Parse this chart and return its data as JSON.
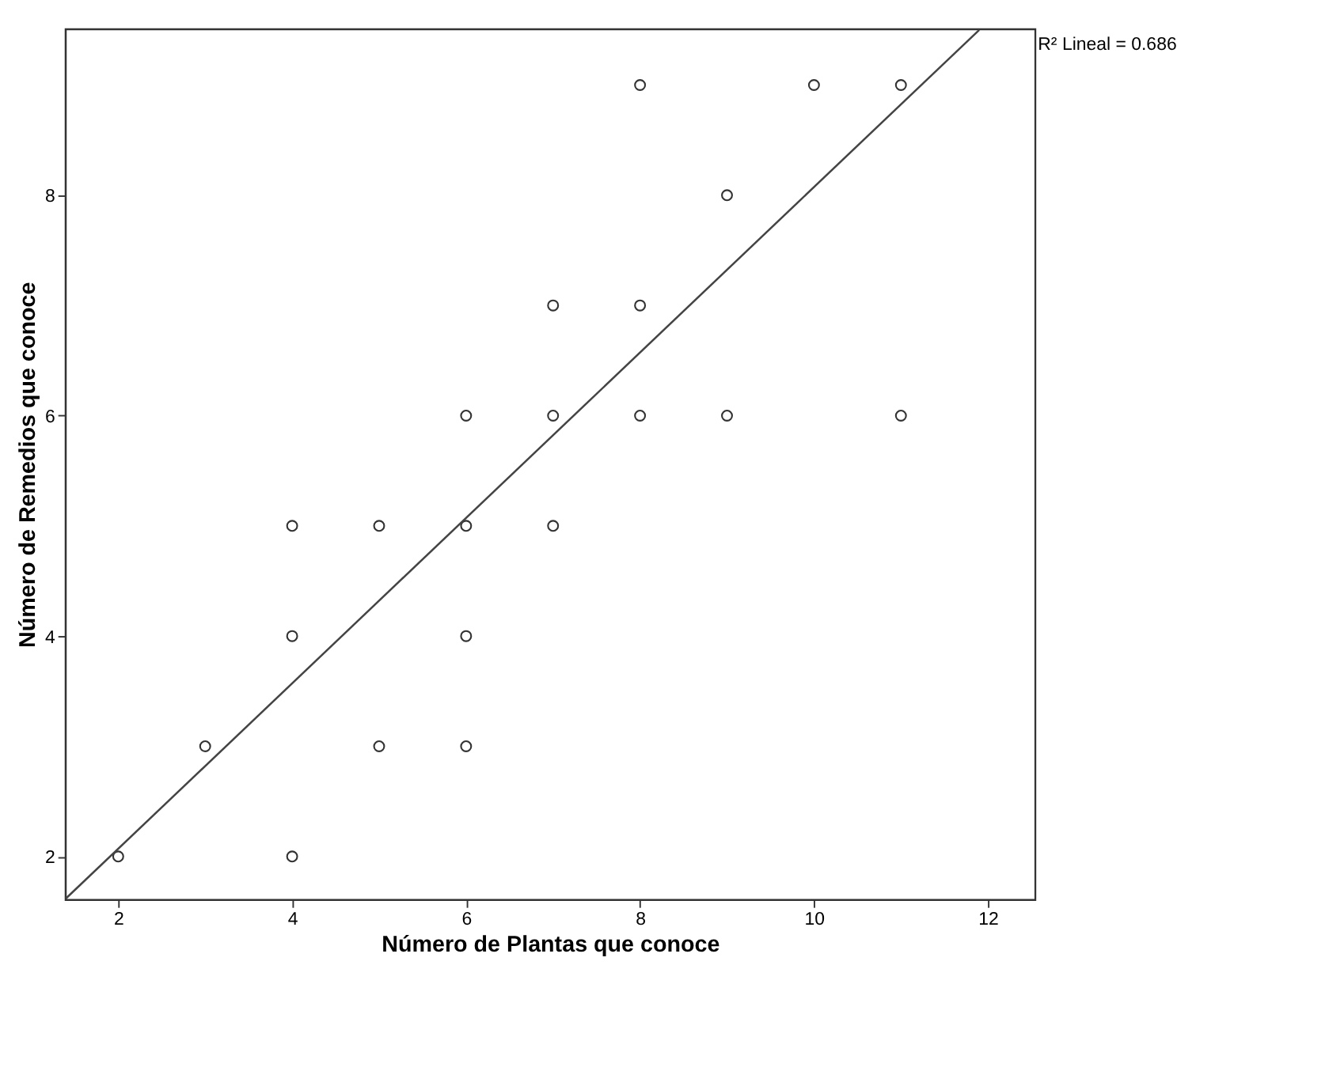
{
  "chart_data": {
    "type": "scatter",
    "xlabel": "Número de Plantas que conoce",
    "ylabel": "Número de Remedios que conoce",
    "x": [
      2,
      3,
      4,
      4,
      4,
      5,
      5,
      6,
      6,
      6,
      6,
      7,
      7,
      7,
      8,
      8,
      8,
      9,
      9,
      10,
      11,
      11
    ],
    "series": [
      {
        "color": "#333333",
        "marker": "circle",
        "values": [
          2,
          3,
          2,
          4,
          5,
          3,
          5,
          3,
          4,
          5,
          6,
          5,
          6,
          7,
          6,
          7,
          9,
          6,
          8,
          9,
          6,
          9
        ]
      },
      {
        "type": "line",
        "color": "#444444",
        "x": [
          1.4,
          11.9
        ],
        "values": [
          1.62,
          9.5
        ]
      }
    ],
    "xlim": [
      1.39,
      12.54
    ],
    "ylim": [
      1.61,
      9.51
    ],
    "xticks": [
      2,
      4,
      6,
      8,
      10,
      12
    ],
    "yticks": [
      2,
      4,
      6,
      8
    ],
    "annotations": [
      "R² Lineal = 0.686"
    ],
    "grid": false
  }
}
